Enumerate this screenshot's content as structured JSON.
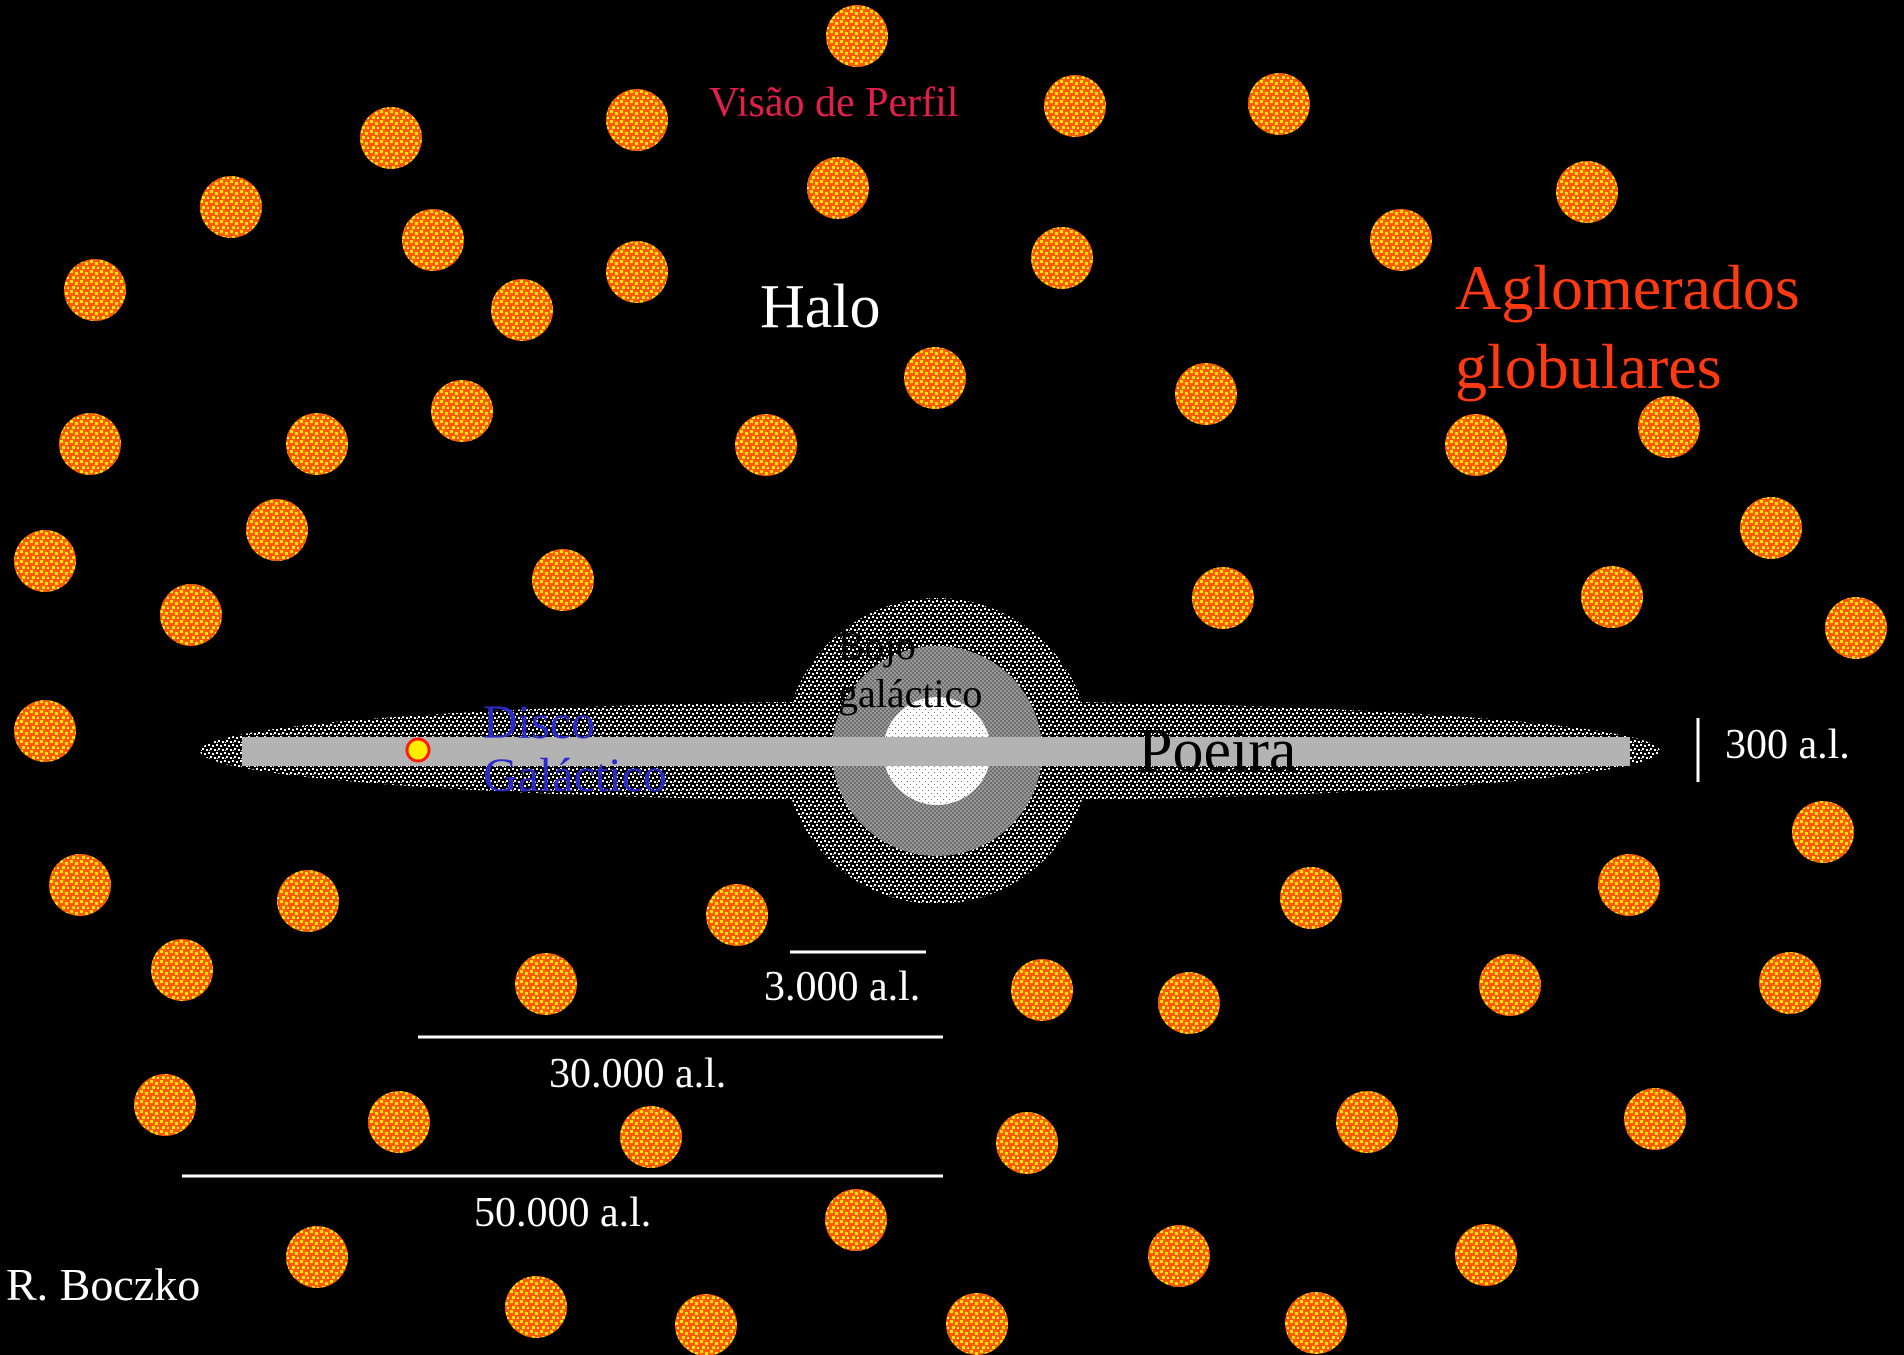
{
  "title": "Visão de Perfil",
  "labels": {
    "halo": "Halo",
    "clusters_line1": "Aglomerados",
    "clusters_line2": "globulares",
    "bulge_line1": "Bojo",
    "bulge_line2": "galáctico",
    "disk_line1": "Disco",
    "disk_line2": "Galáctico",
    "dust": "Poeira"
  },
  "scales": {
    "s300": "300 a.l.",
    "s3000": "3.000 a.l.",
    "s30000": "30.000 a.l.",
    "s50000": "50.000 a.l."
  },
  "author": "R. Boczko",
  "colors": {
    "background": "#000000",
    "cluster_fill": "#ff5a00",
    "cluster_speckle": "#ffe600",
    "disk_band": "#b3b3b3",
    "title": "#e0204a",
    "clusters_label": "#ff3a12",
    "disk_label": "#2b2bc8",
    "sun_marker": "#ffee00"
  }
}
